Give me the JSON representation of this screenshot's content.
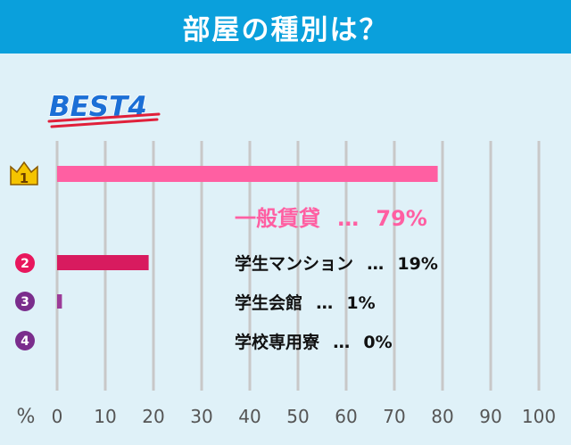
{
  "header": {
    "title": "部屋の種別は？"
  },
  "badge": {
    "text": "BEST4"
  },
  "colors": {
    "header_bg": "#0aa0dc",
    "panel_bg": "#dff1f8",
    "grid": "#c8c8c8",
    "badge_text": "#1b6fd6",
    "badge_underline": "#e0203a",
    "axis_text": "#555555",
    "crown": "#f5c400",
    "rank2": "#e8175d",
    "rank3_4": "#7a2d8c"
  },
  "chart_data": {
    "type": "bar",
    "orientation": "horizontal",
    "xlabel": "%",
    "xlim": [
      0,
      100
    ],
    "ticks": [
      0,
      10,
      20,
      30,
      40,
      50,
      60,
      70,
      80,
      90,
      100
    ],
    "grid": true,
    "bars": [
      {
        "rank": "1",
        "label": "一般賃貸",
        "value": 79,
        "value_text": "79%",
        "color": "#ff5fa2",
        "highlight": true
      },
      {
        "rank": "2",
        "label": "学生マンション",
        "value": 19,
        "value_text": "19%",
        "color": "#d81b5f",
        "highlight": false
      },
      {
        "rank": "3",
        "label": "学生会館",
        "value": 1,
        "value_text": "1%",
        "color": "#9c3b98",
        "highlight": false
      },
      {
        "rank": "4",
        "label": "学校専用寮",
        "value": 0,
        "value_text": "0%",
        "color": "#7a2d8c",
        "highlight": false
      }
    ],
    "separator": "…"
  }
}
